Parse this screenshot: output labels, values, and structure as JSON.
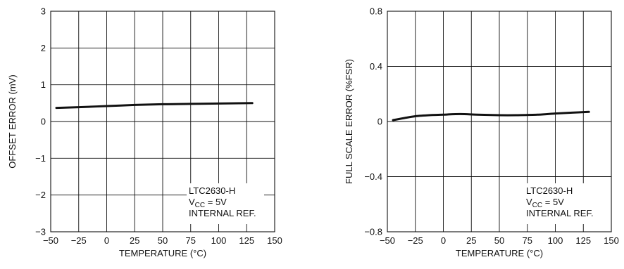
{
  "chart_data": [
    {
      "type": "line",
      "xlabel": "TEMPERATURE (°C)",
      "ylabel": "OFFSET ERROR (mV)",
      "xlim": [
        -50,
        150
      ],
      "ylim": [
        -3,
        3
      ],
      "x_ticks": [
        "−50",
        "−25",
        "0",
        "25",
        "50",
        "75",
        "100",
        "125",
        "150"
      ],
      "y_ticks": [
        "3",
        "2",
        "1",
        "0",
        "−1",
        "−2",
        "−3"
      ],
      "grid": true,
      "annotation": {
        "line1": "LTC2630-H",
        "line2_prefix": "V",
        "line2_sub": "CC",
        "line2_suffix": " = 5V",
        "line3": "INTERNAL REF."
      },
      "series": [
        {
          "x": [
            -45,
            -25,
            0,
            25,
            50,
            75,
            100,
            130
          ],
          "y": [
            0.37,
            0.39,
            0.42,
            0.45,
            0.47,
            0.48,
            0.49,
            0.5
          ]
        }
      ]
    },
    {
      "type": "line",
      "xlabel": "TEMPERATURE (°C)",
      "ylabel": "FULL SCALE ERROR (%FSR)",
      "xlim": [
        -50,
        150
      ],
      "ylim": [
        -0.8,
        0.8
      ],
      "x_ticks": [
        "−50",
        "−25",
        "0",
        "25",
        "50",
        "75",
        "100",
        "125",
        "150"
      ],
      "y_ticks": [
        "0.8",
        "0.4",
        "0",
        "−0.4",
        "−0.8"
      ],
      "grid": true,
      "annotation": {
        "line1": "LTC2630-H",
        "line2_prefix": "V",
        "line2_sub": "CC",
        "line2_suffix": " = 5V",
        "line3": "INTERNAL REF."
      },
      "series": [
        {
          "x": [
            -45,
            -35,
            -25,
            -10,
            0,
            15,
            30,
            50,
            65,
            85,
            100,
            115,
            130
          ],
          "y": [
            0.01,
            0.025,
            0.038,
            0.047,
            0.05,
            0.054,
            0.05,
            0.046,
            0.046,
            0.05,
            0.058,
            0.064,
            0.07
          ]
        }
      ]
    }
  ]
}
